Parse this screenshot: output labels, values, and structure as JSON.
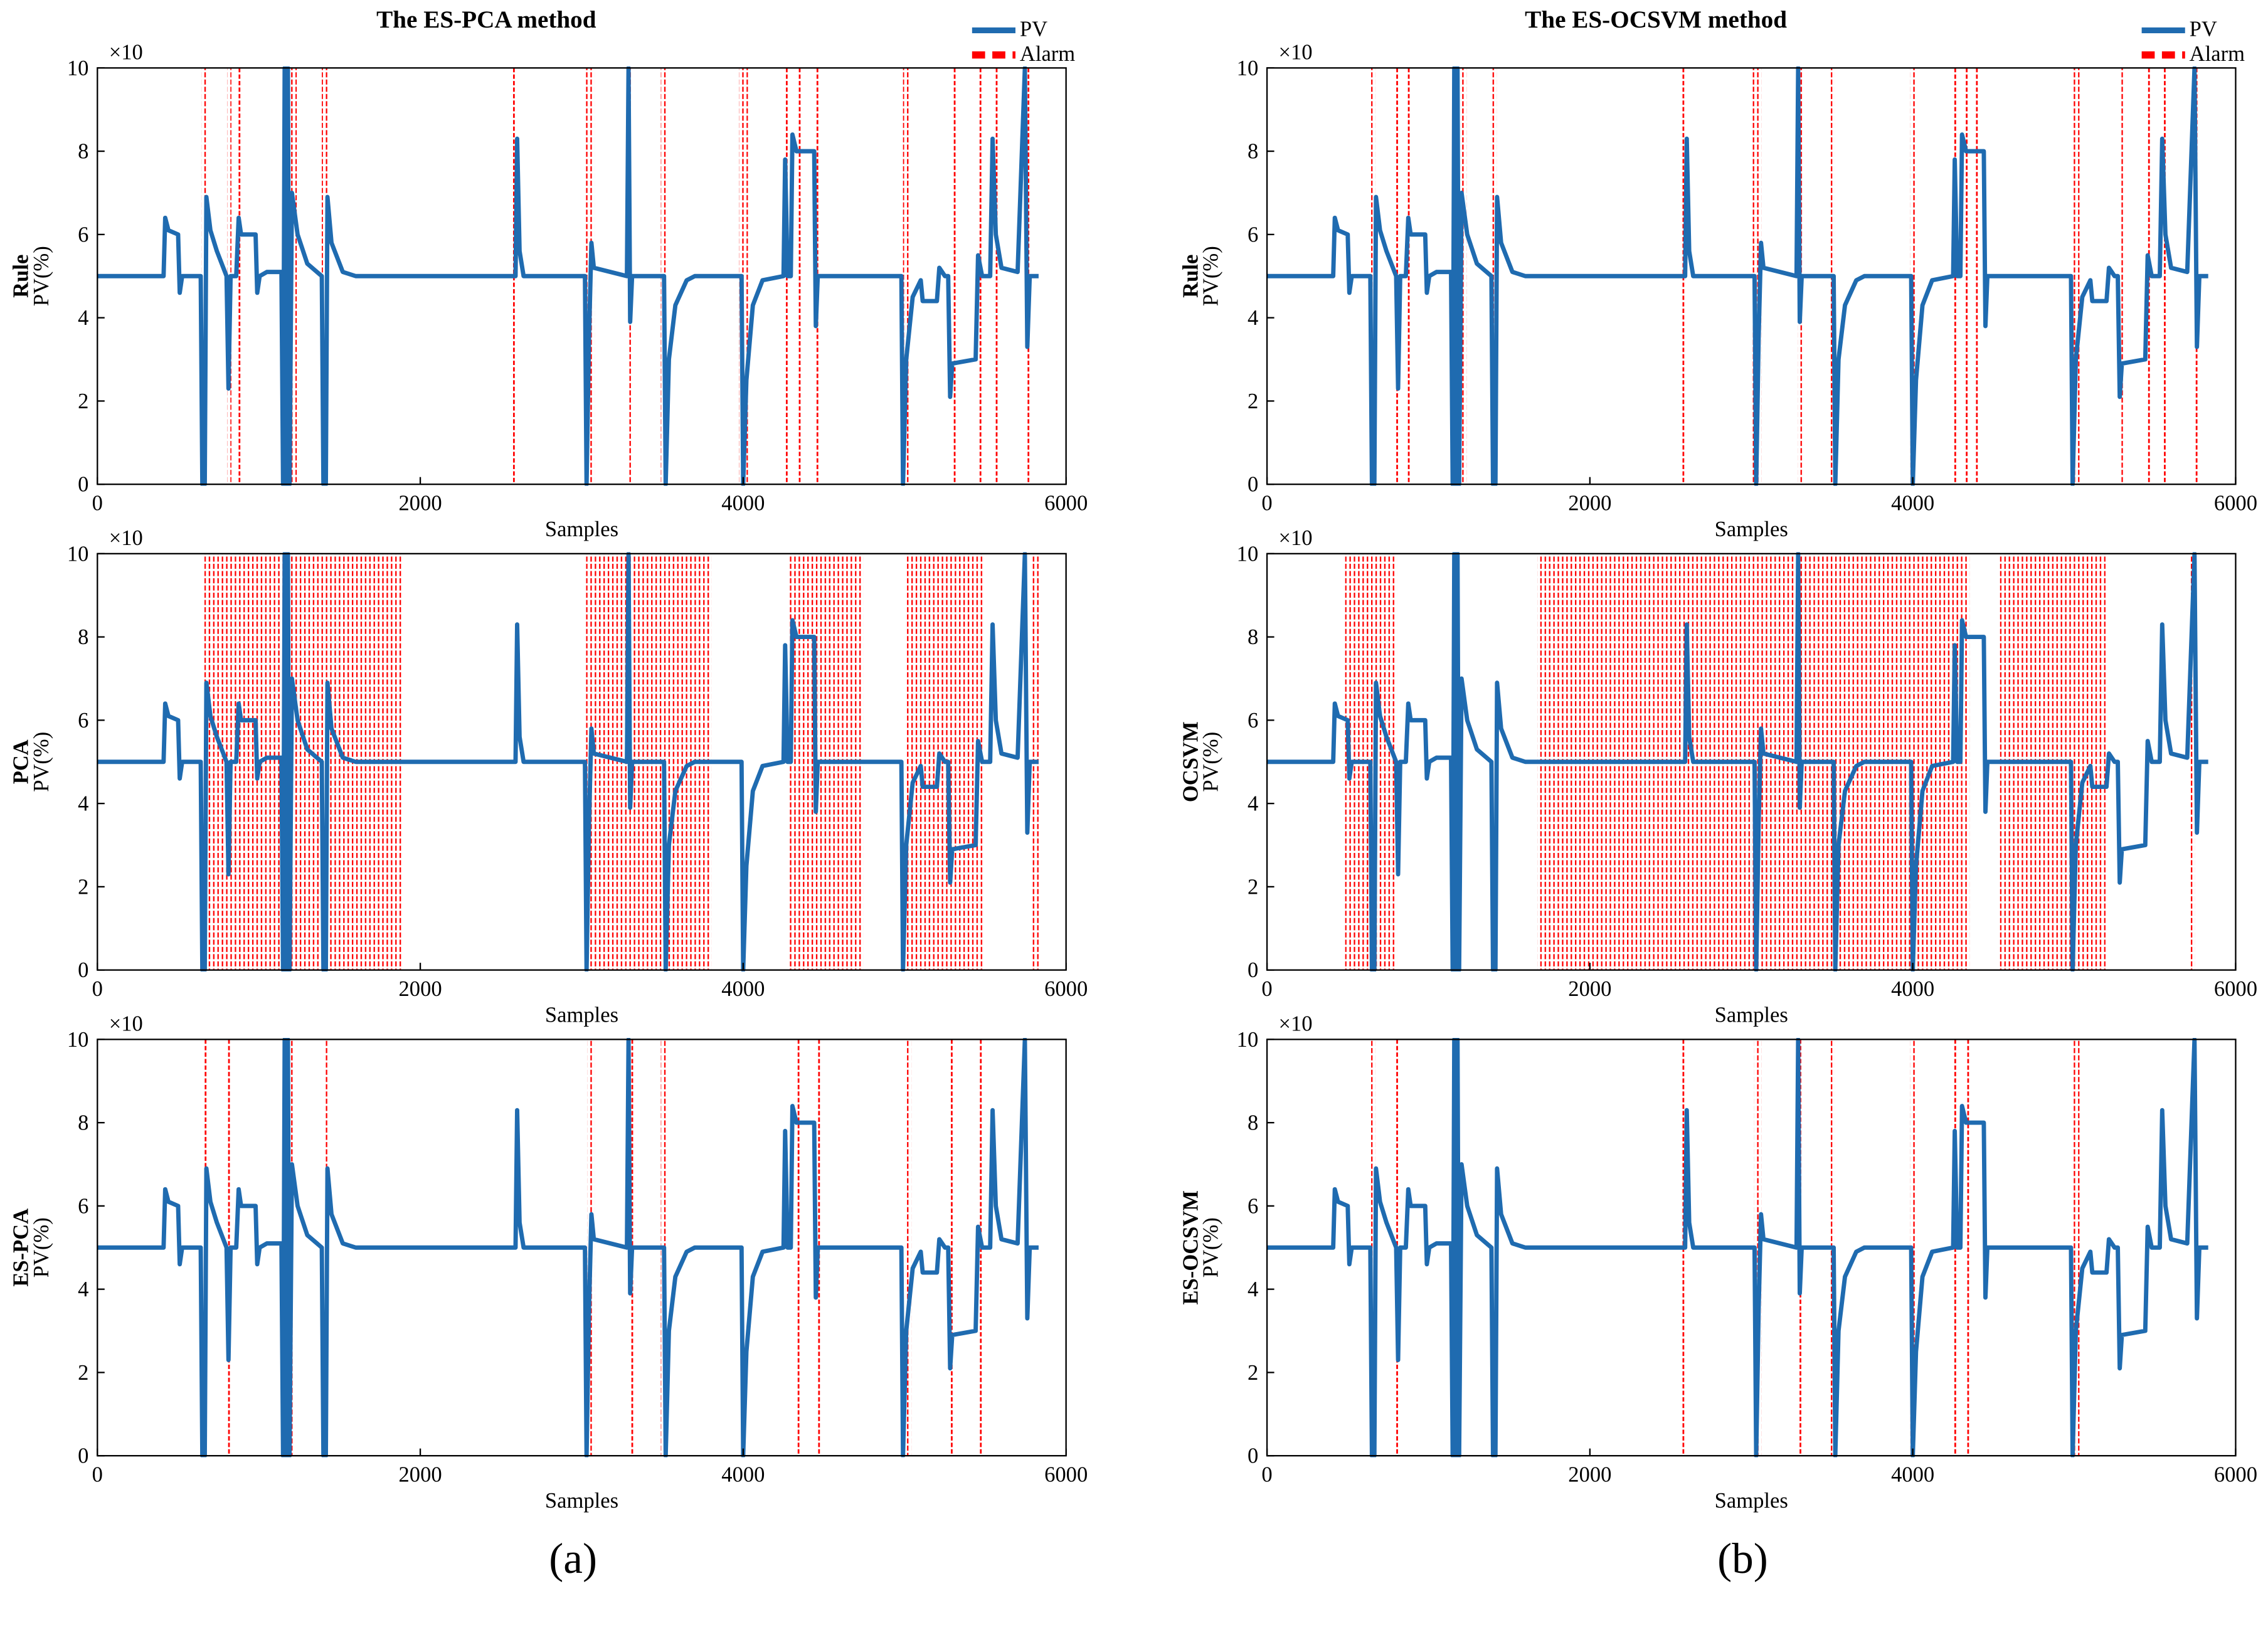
{
  "chart_data": {
    "type": "line",
    "xlim": [
      0,
      6000
    ],
    "xticks": [
      0,
      2000,
      4000,
      6000
    ],
    "ylim": [
      0,
      10
    ],
    "yticks": [
      0,
      2,
      4,
      6,
      8,
      10
    ],
    "y_multiplier": "×10",
    "xlabel": "Samples",
    "ylabel": "PV(%)",
    "x": [
      0,
      410,
      420,
      440,
      500,
      510,
      525,
      640,
      650,
      665,
      675,
      700,
      740,
      780,
      800,
      812,
      825,
      860,
      875,
      890,
      980,
      990,
      1005,
      1050,
      1140,
      1150,
      1160,
      1170,
      1180,
      1190,
      1205,
      1240,
      1300,
      1390,
      1400,
      1415,
      1425,
      1450,
      1520,
      1600,
      2590,
      2600,
      2615,
      2640,
      3020,
      3030,
      3045,
      3060,
      3075,
      3280,
      3290,
      3300,
      3312,
      3510,
      3520,
      3540,
      3580,
      3650,
      3700,
      3990,
      4000,
      4020,
      4060,
      4120,
      4250,
      4260,
      4275,
      4295,
      4305,
      4330,
      4440,
      4450,
      4462,
      4980,
      4990,
      5010,
      5050,
      5100,
      5112,
      5200,
      5215,
      5250,
      5270,
      5282,
      5295,
      5440,
      5455,
      5480,
      5530,
      5545,
      5565,
      5600,
      5700,
      5745,
      5760,
      5775,
      5830
    ],
    "pv": {
      "name": "PV",
      "color": "#1f6bb0",
      "values": [
        5,
        5,
        6.4,
        6.1,
        6.0,
        4.6,
        5,
        5,
        0,
        0,
        6.9,
        6.1,
        5.6,
        5.2,
        5,
        2.3,
        5,
        5,
        6.4,
        6.0,
        6.0,
        4.6,
        5,
        5.1,
        5.1,
        0,
        10,
        0,
        10,
        0,
        7.0,
        6.0,
        5.3,
        5,
        0,
        0,
        6.9,
        5.8,
        5.1,
        5,
        5,
        8.3,
        5.6,
        5,
        5,
        0,
        3.5,
        5.8,
        5.2,
        5,
        10,
        3.9,
        5,
        5,
        0,
        3.0,
        4.3,
        4.9,
        5,
        5,
        0,
        2.5,
        4.3,
        4.9,
        5,
        7.8,
        5,
        5,
        8.4,
        8.0,
        8.0,
        3.8,
        5,
        5,
        0,
        3.0,
        4.5,
        4.9,
        4.4,
        4.4,
        5.2,
        5.0,
        5,
        2.1,
        2.9,
        3.0,
        5.5,
        5.0,
        5,
        8.3,
        6.0,
        5.2,
        5.1,
        10,
        3.3,
        5,
        5
      ]
    },
    "alarm": {
      "name": "Alarm",
      "color": "#ff0000"
    },
    "columns": [
      {
        "title": "The ES-PCA method",
        "label": "(a)",
        "panels": [
          {
            "method": "Rule",
            "alarm_ranges": [
              [
                645,
                680
              ],
              [
                805,
                830
              ],
              [
                880,
                880
              ],
              [
                1165,
                1235
              ],
              [
                1390,
                1425
              ],
              [
                2580,
                2580
              ],
              [
                3020,
                3080
              ],
              [
                3285,
                3320
              ],
              [
                3490,
                3530
              ],
              [
                3975,
                4030
              ],
              [
                4270,
                4270
              ],
              [
                4350,
                4350
              ],
              [
                4460,
                4460
              ],
              [
                4990,
                5040
              ],
              [
                5310,
                5310
              ],
              [
                5470,
                5470
              ],
              [
                5570,
                5570
              ],
              [
                5767,
                5767
              ]
            ]
          },
          {
            "method": "PCA",
            "alarm_ranges": [
              [
                663,
                1890
              ],
              [
                3027,
                3806
              ],
              [
                4280,
                4746
              ],
              [
                5006,
                5490
              ],
              [
                5785,
                5840
              ]
            ]
          },
          {
            "method": "ES-PCA",
            "alarm_ranges": [
              [
                670,
                670
              ],
              [
                815,
                815
              ],
              [
                1173,
                1218
              ],
              [
                1406,
                1433
              ],
              [
                3036,
                3080
              ],
              [
                3313,
                3313
              ],
              [
                3490,
                3530
              ],
              [
                4343,
                4343
              ],
              [
                4470,
                4470
              ],
              [
                5006,
                5042
              ],
              [
                5292,
                5292
              ],
              [
                5472,
                5472
              ]
            ]
          }
        ]
      },
      {
        "title": "The ES-OCSVM method",
        "label": "(b)",
        "panels": [
          {
            "method": "Rule",
            "alarm_ranges": [
              [
                645,
                672
              ],
              [
                806,
                806
              ],
              [
                878,
                878
              ],
              [
                1146,
                1236
              ],
              [
                1388,
                1424
              ],
              [
                2579,
                2579
              ],
              [
                3000,
                3063
              ],
              [
                3287,
                3322
              ],
              [
                3492,
                3519
              ],
              [
                3985,
                4021
              ],
              [
                4263,
                4263
              ],
              [
                4334,
                4334
              ],
              [
                4397,
                4397
              ],
              [
                4988,
                5033
              ],
              [
                5292,
                5310
              ],
              [
                5463,
                5463
              ],
              [
                5561,
                5561
              ],
              [
                5758,
                5758
              ]
            ]
          },
          {
            "method": "OCSVM",
            "alarm_ranges": [
              [
                484,
                806
              ],
              [
                1675,
                4352
              ],
              [
                4540,
                5194
              ],
              [
                5713,
                5749
              ]
            ]
          },
          {
            "method": "ES-OCSVM",
            "alarm_ranges": [
              [
                645,
                672
              ],
              [
                806,
                806
              ],
              [
                2579,
                2579
              ],
              [
                3018,
                3063
              ],
              [
                3304,
                3304
              ],
              [
                3492,
                3519
              ],
              [
                3985,
                4021
              ],
              [
                4263,
                4263
              ],
              [
                4343,
                4343
              ],
              [
                4988,
                5033
              ]
            ]
          }
        ]
      }
    ]
  }
}
